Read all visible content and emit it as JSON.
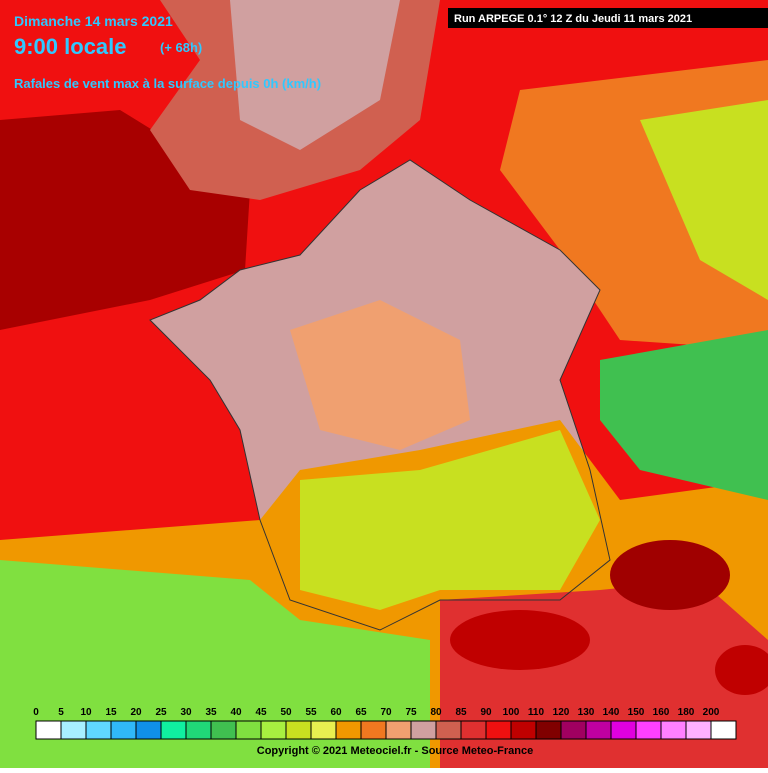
{
  "header": {
    "date": "Dimanche 14 mars 2021",
    "time": "9:00 locale",
    "lead": "(+ 68h)",
    "parameter": "Rafales de vent max à la surface depuis 0h (km/h)",
    "run": "Run ARPEGE 0.1° 12 Z du Jeudi 11 mars 2021"
  },
  "legend": {
    "values": [
      0,
      5,
      10,
      15,
      20,
      25,
      30,
      35,
      40,
      45,
      50,
      55,
      60,
      65,
      70,
      75,
      80,
      85,
      90,
      100,
      110,
      120,
      130,
      140,
      150,
      160,
      180,
      200
    ],
    "colors": [
      "#ffffff",
      "#a8f0ff",
      "#60d8ff",
      "#30b8f8",
      "#1090e8",
      "#10f0a0",
      "#20d878",
      "#40c050",
      "#80e040",
      "#a8f040",
      "#c8e020",
      "#e8f050",
      "#f09800",
      "#f07820",
      "#f0a070",
      "#d0a0a0",
      "#d06050",
      "#e03030",
      "#f01010",
      "#c00000",
      "#800000",
      "#a00060",
      "#c000a0",
      "#e000e0",
      "#ff40ff",
      "#ff80ff",
      "#ffb0ff",
      "#ffffff"
    ]
  },
  "footer": {
    "copyright": "Copyright © 2021 Meteociel.fr - Source Meteo-France"
  }
}
